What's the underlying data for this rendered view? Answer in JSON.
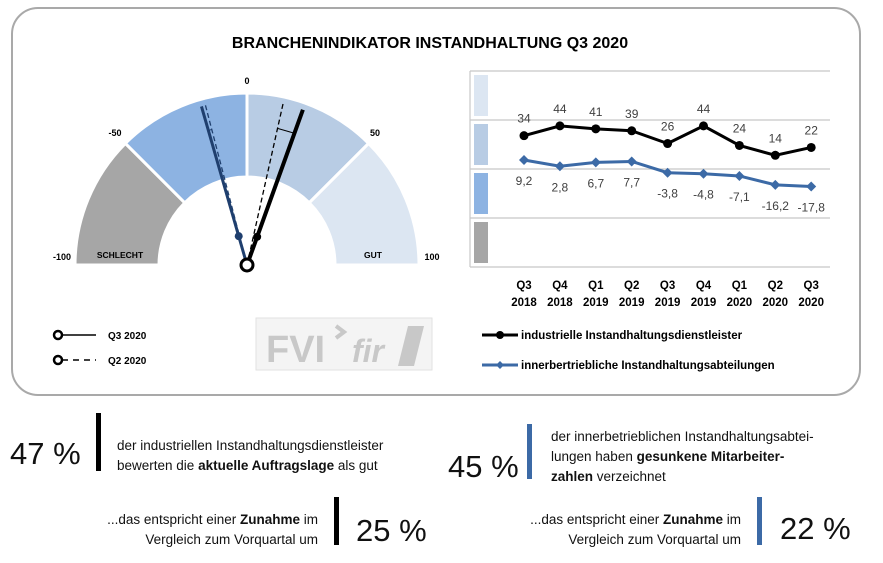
{
  "title": "BRANCHENINDIKATOR INSTANDHALTUNG Q3 2020",
  "gauge": {
    "ticks": [
      {
        "value": -100,
        "label": "-100"
      },
      {
        "value": -50,
        "label": "-50"
      },
      {
        "value": 0,
        "label": "0"
      },
      {
        "value": 50,
        "label": "50"
      },
      {
        "value": 100,
        "label": "100"
      }
    ],
    "zone_labels": {
      "bad": "SCHLECHT",
      "good": "GUT"
    },
    "segments": [
      {
        "from": -100,
        "to": -50,
        "color": "#A6A6A6"
      },
      {
        "from": -50,
        "to": 0,
        "color": "#8DB3E2"
      },
      {
        "from": 0,
        "to": 50,
        "color": "#B8CCE4"
      },
      {
        "from": 50,
        "to": 100,
        "color": "#DCE6F2"
      }
    ],
    "needles": [
      {
        "series": "industrielle",
        "period": "Q3 2020",
        "value": 22,
        "color": "#000000",
        "style": "solid"
      },
      {
        "series": "industrielle",
        "period": "Q2 2020",
        "value": 14,
        "color": "#000000",
        "style": "dashed"
      },
      {
        "series": "innerbetrieblich",
        "period": "Q3 2020",
        "value": -17.8,
        "color": "#1F3F6E",
        "style": "solid"
      },
      {
        "series": "innerbetrieblich",
        "period": "Q2 2020",
        "value": -16.2,
        "color": "#1F3F6E",
        "style": "dashed"
      }
    ],
    "legend": [
      {
        "label": "Q3 2020",
        "style": "solid"
      },
      {
        "label": "Q2 2020",
        "style": "dashed"
      }
    ]
  },
  "logo": {
    "text1": "FVI",
    "text2": "fir"
  },
  "chart_data": {
    "type": "line",
    "categories": [
      [
        "Q3",
        "2018"
      ],
      [
        "Q4",
        "2018"
      ],
      [
        "Q1",
        "2019"
      ],
      [
        "Q2",
        "2019"
      ],
      [
        "Q3",
        "2019"
      ],
      [
        "Q4",
        "2019"
      ],
      [
        "Q1",
        "2020"
      ],
      [
        "Q2",
        "2020"
      ],
      [
        "Q3",
        "2020"
      ]
    ],
    "ylim": [
      -100,
      100
    ],
    "grid": true,
    "band_colors": [
      "#DCE6F2",
      "#B8CCE4",
      "#8DB3E2",
      "#A6A6A6"
    ],
    "legend_position": "bottom",
    "series": [
      {
        "name": "industrielle Instandhaltungsdienstleister",
        "color": "#000000",
        "marker": "circle",
        "values": [
          34,
          44,
          41,
          39,
          26,
          44,
          24,
          14,
          22
        ],
        "labels": [
          "34",
          "44",
          "41",
          "39",
          "26",
          "44",
          "24",
          "14",
          "22"
        ]
      },
      {
        "name": "innerbertriebliche Instandhaltungsabteilungen",
        "color": "#3C6AA6",
        "marker": "diamond",
        "values": [
          9.2,
          2.8,
          6.7,
          7.7,
          -3.8,
          -4.8,
          -7.1,
          -16.2,
          -17.8
        ],
        "labels": [
          "9,2",
          "2,8",
          "6,7",
          "7,7",
          "-3,8",
          "-4,8",
          "-7,1",
          "-16,2",
          "-17,8"
        ]
      }
    ]
  },
  "stats": [
    {
      "value": "47 %",
      "color": "#000000",
      "line1": "der industriellen Instandhaltungsdienstleister",
      "line2a": "bewerten die ",
      "line2b": "aktuelle Auftragslage",
      "line2c": " als gut"
    },
    {
      "value": "45 %",
      "color": "#3C6AA6",
      "line1": "der innerbetrieblichen Instandhaltungsabtei-",
      "line2a": "lungen haben ",
      "line2b": "gesunkene Mitarbeiter-",
      "line3a": "zahlen",
      "line3b": " verzeichnet"
    },
    {
      "value": "25 %",
      "color": "#000000",
      "line1a": "...das entspricht einer ",
      "line1b": "Zunahme",
      "line1c": " im",
      "line2": "Vergleich zum Vorquartal um"
    },
    {
      "value": "22 %",
      "color": "#3C6AA6",
      "line1a": "...das entspricht einer ",
      "line1b": "Zunahme",
      "line1c": " im",
      "line2": "Vergleich zum Vorquartal um"
    }
  ]
}
